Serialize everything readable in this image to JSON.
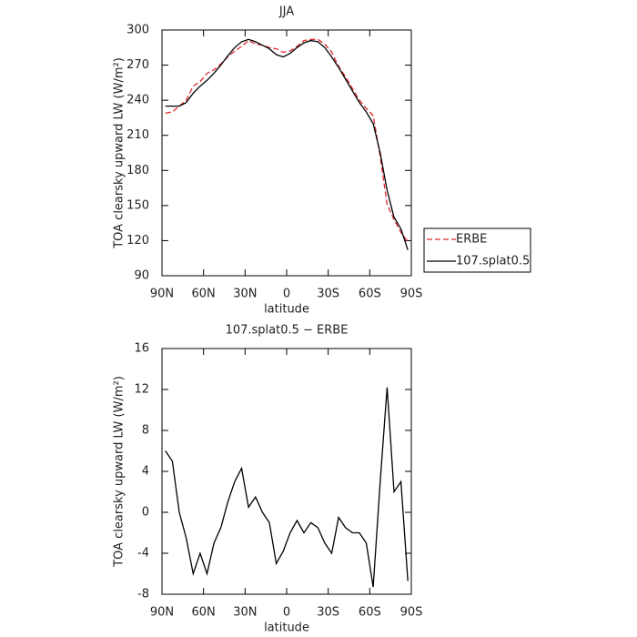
{
  "chart_data": [
    {
      "type": "line",
      "title": "JJA",
      "xlabel": "latitude",
      "ylabel": "TOA clearsky upward LW (W/m²)",
      "x": [
        87.5,
        82.5,
        77.5,
        72.5,
        67.5,
        62.5,
        57.5,
        52.5,
        47.5,
        42.5,
        37.5,
        32.5,
        27.5,
        22.5,
        17.5,
        12.5,
        7.5,
        2.5,
        -2.5,
        -7.5,
        -12.5,
        -17.5,
        -22.5,
        -27.5,
        -32.5,
        -37.5,
        -42.5,
        -47.5,
        -52.5,
        -57.5,
        -62.5,
        -67.5,
        -72.5,
        -77.5,
        -82.5,
        -87.5
      ],
      "series": [
        {
          "name": "ERBE",
          "color": "#e0262b",
          "dash": true,
          "values": [
            229,
            230,
            235,
            240,
            252,
            256,
            263,
            266,
            271,
            277,
            282,
            286,
            291,
            288,
            287,
            285,
            284,
            281,
            282,
            286,
            291,
            292,
            292,
            288,
            281,
            269,
            260,
            250,
            240,
            233,
            227,
            192,
            151,
            138,
            127,
            119
          ]
        },
        {
          "name": "107.splat0.5",
          "color": "#000000",
          "dash": false,
          "values": [
            235,
            235,
            235,
            238,
            246,
            252,
            257,
            263,
            270,
            278,
            285,
            290,
            292,
            290,
            287,
            284,
            279,
            277,
            280,
            285,
            289,
            291,
            290,
            285,
            277,
            268,
            258,
            248,
            238,
            230,
            220,
            195,
            163,
            140,
            130,
            112
          ]
        }
      ],
      "xlim": [
        90,
        -90
      ],
      "xticks": [
        {
          "value": 90,
          "label": "90N"
        },
        {
          "value": 60,
          "label": "60N"
        },
        {
          "value": 30,
          "label": "30N"
        },
        0,
        {
          "value": -30,
          "label": "30S"
        },
        {
          "value": -60,
          "label": "60S"
        },
        {
          "value": -90,
          "label": "90S"
        }
      ],
      "ylim": [
        90,
        300
      ],
      "yticks": [
        90,
        120,
        150,
        180,
        210,
        240,
        270,
        300
      ],
      "legend": "right"
    },
    {
      "type": "line",
      "title": "107.splat0.5 − ERBE",
      "xlabel": "latitude",
      "ylabel": "TOA clearsky upward LW (W/m²)",
      "x": [
        87.5,
        82.5,
        77.5,
        72.5,
        67.5,
        62.5,
        57.5,
        52.5,
        47.5,
        42.5,
        37.5,
        32.5,
        27.5,
        22.5,
        17.5,
        12.5,
        7.5,
        2.5,
        -2.5,
        -7.5,
        -12.5,
        -17.5,
        -22.5,
        -27.5,
        -32.5,
        -37.5,
        -42.5,
        -47.5,
        -52.5,
        -57.5,
        -62.5,
        -67.5,
        -72.5,
        -77.5,
        -82.5,
        -87.5
      ],
      "values": [
        6,
        5,
        0,
        -2.5,
        -6,
        -4,
        -6,
        -3,
        -1.5,
        1,
        3,
        4.3,
        0.5,
        1.5,
        0,
        -1,
        -5,
        -3.8,
        -2,
        -0.8,
        -2,
        -1,
        -1.5,
        -3,
        -4,
        -0.5,
        -1.5,
        -2,
        -2,
        -3,
        -7.3,
        3,
        12.2,
        2,
        3,
        -6.7
      ],
      "color": "#000000",
      "xlim": [
        90,
        -90
      ],
      "xticks": [
        {
          "value": 90,
          "label": "90N"
        },
        {
          "value": 60,
          "label": "60N"
        },
        {
          "value": 30,
          "label": "30N"
        },
        0,
        {
          "value": -30,
          "label": "30S"
        },
        {
          "value": -60,
          "label": "60S"
        },
        {
          "value": -90,
          "label": "90S"
        }
      ],
      "ylim": [
        -8,
        16
      ],
      "yticks": [
        -8,
        -4,
        0,
        4,
        8,
        12,
        16
      ]
    }
  ]
}
